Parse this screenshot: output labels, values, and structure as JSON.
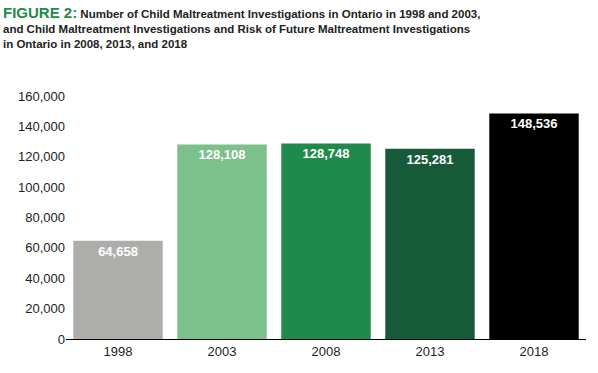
{
  "chart_data": {
    "type": "bar",
    "title": [
      "FIGURE 2: Number of Child Maltreatment Investigations in Ontario in 1998 and 2003,",
      "and Child Maltreatment Investigations and Risk of Future Maltreatment Investigations",
      "in Ontario in 2008, 2013, and 2018"
    ],
    "categories": [
      "1998",
      "2003",
      "2008",
      "2013",
      "2018"
    ],
    "values": [
      64658,
      128108,
      128748,
      125281,
      148536
    ],
    "value_labels": [
      "64,658",
      "128,108",
      "128,748",
      "125,281",
      "148,536"
    ],
    "colors": [
      "#adadac",
      "#7cc08c",
      "#1f8a4c",
      "#165a3a",
      "#000000"
    ],
    "data_labels": true,
    "ylim": [
      0,
      160000
    ],
    "yticks": [
      0,
      {
        "value": 20000,
        "label": "20,000"
      },
      {
        "value": 40000,
        "label": "40,000"
      },
      {
        "value": 60000,
        "label": "60,000"
      },
      {
        "value": 80000,
        "label": "80,000"
      },
      {
        "value": 100000,
        "label": "100,000"
      },
      {
        "value": 120000,
        "label": "120,000"
      },
      {
        "value": 140000,
        "label": "140,000"
      },
      {
        "value": 160000,
        "label": "160,000"
      }
    ],
    "grid": false
  }
}
